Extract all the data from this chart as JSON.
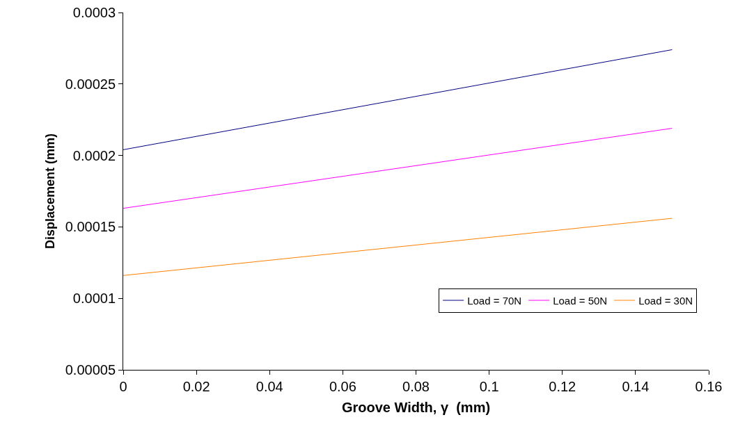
{
  "chart_data": {
    "type": "line",
    "xlabel": "Groove Width, γ  (mm)",
    "ylabel": "Displacement (mm)",
    "x": [
      0,
      0.15
    ],
    "series": [
      {
        "name": "Load = 70N",
        "color": "#000080",
        "values": [
          0.000204,
          0.000274
        ]
      },
      {
        "name": "Load = 50N",
        "color": "#ff00ff",
        "values": [
          0.000163,
          0.000219
        ]
      },
      {
        "name": "Load = 30N",
        "color": "#ff8000",
        "values": [
          0.000116,
          0.000156
        ]
      }
    ],
    "xlim": [
      0,
      0.16
    ],
    "xticks": [
      0,
      0.02,
      0.04,
      0.06,
      0.08,
      0.1,
      0.12,
      0.14,
      0.16
    ],
    "ylim": [
      5e-05,
      0.0003
    ],
    "yticks": [
      {
        "value": 5e-05,
        "label": "0.00005"
      },
      0.0001,
      0.00015,
      0.0002,
      0.00025,
      0.0003
    ],
    "grid": false,
    "legend": "bottom right",
    "marker": "none",
    "line_style": "solid"
  }
}
